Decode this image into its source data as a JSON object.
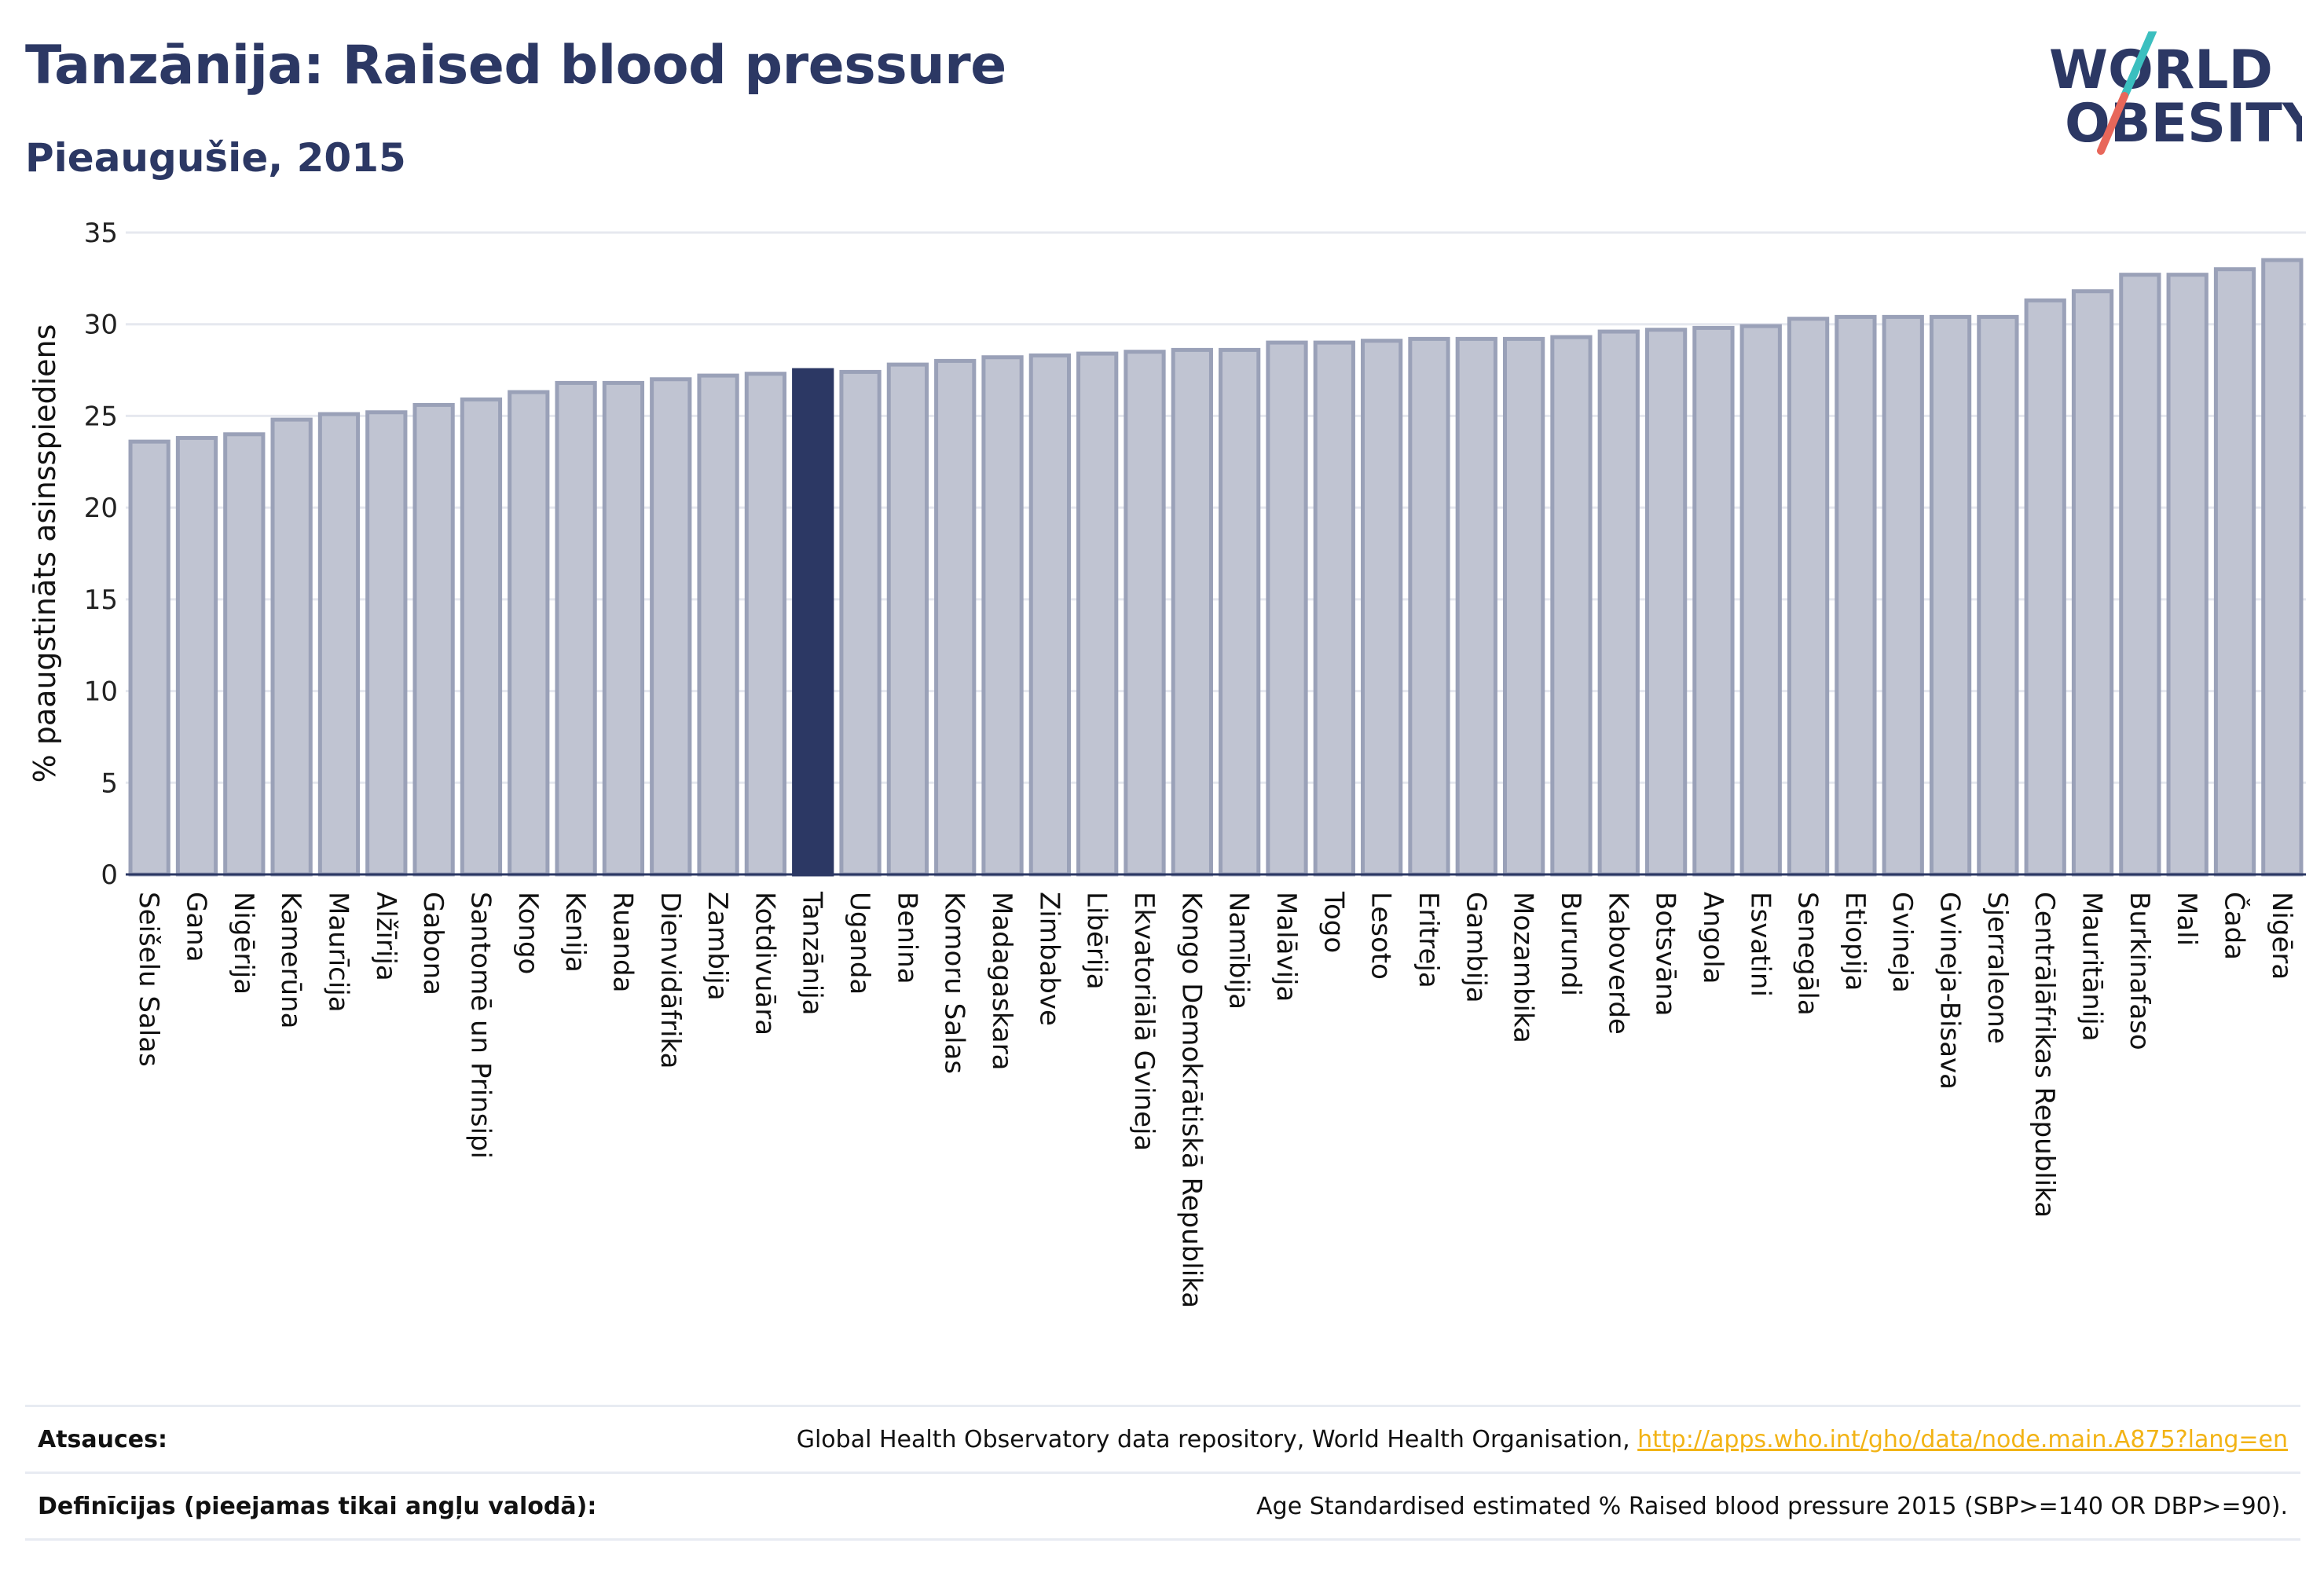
{
  "header": {
    "title": "Tanzānija: Raised blood pressure",
    "subtitle": "Pieaugušie, 2015"
  },
  "logo": {
    "line1": "WORLD",
    "line2": "OBESITY",
    "colors": {
      "text": "#2c3864",
      "slash_top": "#3bbfbf",
      "slash_bottom": "#e8675a"
    }
  },
  "colors": {
    "bar_fill": "#c0c4d2",
    "bar_stroke": "#9aa1b8",
    "highlight": "#2c3864",
    "grid": "#e6e8ef",
    "title": "#2c3864",
    "link": "#f2b315"
  },
  "chart_data": {
    "type": "bar",
    "ylabel": "% paaugstināts asinsspiediens",
    "ylim": [
      0,
      35
    ],
    "yticks": [
      0,
      5,
      10,
      15,
      20,
      25,
      30,
      35
    ],
    "grid": true,
    "highlight": "Tanzānija",
    "categories": [
      "Seišelu Salas",
      "Gana",
      "Nigērija",
      "Kamerūna",
      "Maurīcija",
      "Alžīrija",
      "Gabona",
      "Santomē un Prinsipi",
      "Kongo",
      "Kenija",
      "Ruanda",
      "Dienvidāfrika",
      "Zambija",
      "Kotdivuāra",
      "Tanzānija",
      "Uganda",
      "Benina",
      "Komoru Salas",
      "Madagaskara",
      "Zimbabve",
      "Libērija",
      "Ekvatoriālā Gvineja",
      "Kongo Demokrātiskā Republika",
      "Namībija",
      "Malāvija",
      "Togo",
      "Lesoto",
      "Eritreja",
      "Gambija",
      "Mozambika",
      "Burundi",
      "Kaboverde",
      "Botsvāna",
      "Angola",
      "Esvatini",
      "Senegāla",
      "Etiopija",
      "Gvineja",
      "Gvineja-Bisava",
      "Sjerraleone",
      "Centrālāfrikas Republika",
      "Mauritānija",
      "Burkinafaso",
      "Mali",
      "Čada",
      "Nigēra"
    ],
    "values": [
      23.6,
      23.8,
      24.0,
      24.8,
      25.1,
      25.2,
      25.6,
      25.9,
      26.3,
      26.8,
      26.8,
      27.0,
      27.2,
      27.3,
      27.5,
      27.4,
      27.8,
      28.0,
      28.2,
      28.3,
      28.4,
      28.5,
      28.6,
      28.6,
      29.0,
      29.0,
      29.1,
      29.2,
      29.2,
      29.2,
      29.3,
      29.6,
      29.7,
      29.8,
      29.9,
      30.3,
      30.4,
      30.4,
      30.4,
      30.4,
      31.3,
      31.8,
      32.7,
      32.7,
      33.0,
      33.5
    ]
  },
  "footer": {
    "sources_label": "Atsauces:",
    "sources_text": "Global Health Observatory data repository, World Health Organisation, ",
    "sources_link": "http://apps.who.int/gho/data/node.main.A875?lang=en",
    "definitions_label": "Definīcijas (pieejamas tikai angļu valodā):",
    "definitions_text": "Age Standardised estimated % Raised blood pressure 2015 (SBP>=140 OR DBP>=90)."
  }
}
